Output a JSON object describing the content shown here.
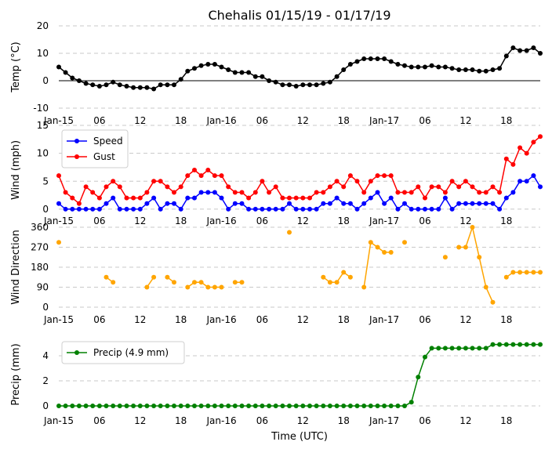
{
  "chart_data": {
    "type": "line",
    "title": "Chehalis 01/15/19 - 01/17/19",
    "xlabel": "Time (UTC)",
    "x_units": "hours since 2019-01-15 00:00 UTC",
    "x_range": [
      0,
      71
    ],
    "x_tick_values": [
      0,
      6,
      12,
      18,
      24,
      30,
      36,
      42,
      48,
      54,
      60,
      66
    ],
    "x_tick_labels": [
      "Jan-15",
      "06",
      "12",
      "18",
      "Jan-16",
      "06",
      "12",
      "18",
      "Jan-17",
      "06",
      "12",
      "18"
    ],
    "panels": [
      {
        "name": "temperature",
        "ylabel": "Temp (°C)",
        "ylim": [
          -10,
          20
        ],
        "yticks": [
          -10,
          0,
          10,
          20
        ],
        "grid": true,
        "zero_line": true,
        "series": [
          {
            "color": "#000000",
            "values": [
              5,
              3,
              1,
              0,
              -1,
              -1.5,
              -2,
              -1.5,
              -0.5,
              -1.5,
              -2,
              -2.5,
              -2.5,
              -2.5,
              -3,
              -1.5,
              -1.5,
              -1.5,
              0.5,
              3.5,
              4.5,
              5.5,
              6,
              6,
              5,
              4,
              3,
              3,
              3,
              1.5,
              1.5,
              0,
              -0.5,
              -1.5,
              -1.5,
              -2,
              -1.5,
              -1.5,
              -1.5,
              -1,
              -0.5,
              1.5,
              4,
              6,
              7,
              8,
              8,
              8,
              8,
              7,
              6,
              5.5,
              5,
              5,
              5,
              5.5,
              5,
              5,
              4.5,
              4,
              4,
              4,
              3.5,
              3.5,
              4,
              4.5,
              9,
              12,
              11,
              11,
              12,
              10
            ]
          }
        ]
      },
      {
        "name": "wind",
        "ylabel": "Wind (mph)",
        "ylim": [
          -1,
          15
        ],
        "yticks": [
          0,
          5,
          10,
          15
        ],
        "grid": true,
        "legend": "top-left",
        "series": [
          {
            "name": "Speed",
            "color": "#0000ff",
            "values": [
              1,
              0,
              0,
              0,
              0,
              0,
              0,
              1,
              2,
              0,
              0,
              0,
              0,
              1,
              2,
              0,
              1,
              1,
              0,
              2,
              2,
              3,
              3,
              3,
              2,
              0,
              1,
              1,
              0,
              0,
              0,
              0,
              0,
              0,
              1,
              0,
              0,
              0,
              0,
              1,
              1,
              2,
              1,
              1,
              0,
              1,
              2,
              3,
              1,
              2,
              0,
              1,
              0,
              0,
              0,
              0,
              0,
              2,
              0,
              1,
              1,
              1,
              1,
              1,
              1,
              0,
              2,
              3,
              5,
              5,
              6,
              4
            ]
          },
          {
            "name": "Gust",
            "color": "#ff0000",
            "values": [
              6,
              3,
              2,
              1,
              4,
              3,
              2,
              4,
              5,
              4,
              2,
              2,
              2,
              3,
              5,
              5,
              4,
              3,
              4,
              6,
              7,
              6,
              7,
              6,
              6,
              4,
              3,
              3,
              2,
              3,
              5,
              3,
              4,
              2,
              2,
              2,
              2,
              2,
              3,
              3,
              4,
              5,
              4,
              6,
              5,
              3,
              5,
              6,
              6,
              6,
              3,
              3,
              3,
              4,
              2,
              4,
              4,
              3,
              5,
              4,
              5,
              4,
              3,
              3,
              4,
              3,
              9,
              8,
              11,
              10,
              12,
              13
            ]
          }
        ]
      },
      {
        "name": "direction",
        "ylabel": "Wind Direction",
        "ylim": [
          0,
          360
        ],
        "yticks": [
          0,
          90,
          180,
          270,
          360
        ],
        "grid": true,
        "series": [
          {
            "color": "#ffa500",
            "values": [
              292,
              null,
              null,
              null,
              null,
              null,
              null,
              135,
              112,
              null,
              null,
              null,
              null,
              90,
              135,
              null,
              135,
              112,
              null,
              90,
              112,
              112,
              90,
              90,
              90,
              null,
              112,
              112,
              null,
              null,
              null,
              null,
              null,
              null,
              337,
              null,
              null,
              null,
              null,
              135,
              112,
              112,
              157,
              135,
              null,
              90,
              292,
              270,
              247,
              247,
              null,
              292,
              null,
              null,
              null,
              null,
              null,
              225,
              null,
              270,
              270,
              360,
              225,
              90,
              22,
              null,
              135,
              157,
              157,
              157,
              157,
              157
            ]
          }
        ]
      },
      {
        "name": "precip",
        "ylabel": "Precip (mm)",
        "ylim": [
          -0.5,
          5.5
        ],
        "yticks": [
          0,
          2,
          4
        ],
        "grid": true,
        "legend": "top-left",
        "series": [
          {
            "name": "Precip (4.9 mm)",
            "color": "#008000",
            "values": [
              0,
              0,
              0,
              0,
              0,
              0,
              0,
              0,
              0,
              0,
              0,
              0,
              0,
              0,
              0,
              0,
              0,
              0,
              0,
              0,
              0,
              0,
              0,
              0,
              0,
              0,
              0,
              0,
              0,
              0,
              0,
              0,
              0,
              0,
              0,
              0,
              0,
              0,
              0,
              0,
              0,
              0,
              0,
              0,
              0,
              0,
              0,
              0,
              0,
              0,
              0,
              0,
              0.3,
              2.3,
              3.9,
              4.6,
              4.6,
              4.6,
              4.6,
              4.6,
              4.6,
              4.6,
              4.6,
              4.6,
              4.9,
              4.9,
              4.9,
              4.9,
              4.9,
              4.9,
              4.9,
              4.9
            ]
          }
        ]
      }
    ]
  }
}
